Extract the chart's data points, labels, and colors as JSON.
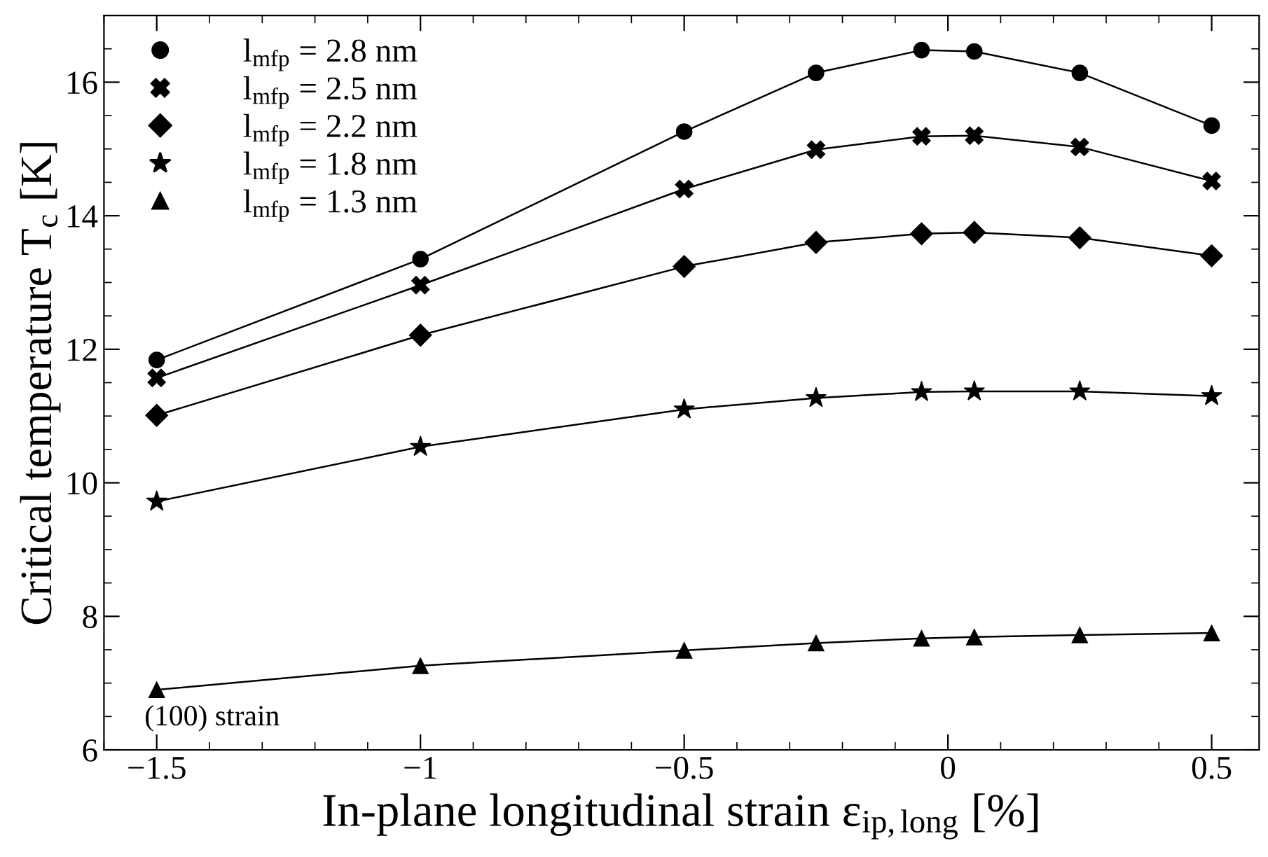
{
  "chart_data": {
    "type": "line",
    "xlabel": "In-plane longitudinal strain ε$_{ip,long}$ [%]",
    "ylabel": "Critical temperature T$_{c}$ [K]",
    "x": [
      -1.5,
      -1,
      -0.5,
      -0.25,
      -0.05,
      0.05,
      0.25,
      0.5
    ],
    "xlim": [
      -1.6,
      0.59
    ],
    "xticks": [
      {
        "value": -1.5,
        "label": "−1.5"
      },
      {
        "value": -1,
        "label": "−1"
      },
      {
        "value": -0.5,
        "label": "−0.5"
      },
      0,
      0.5
    ],
    "ylim": [
      6,
      17
    ],
    "yticks": [
      6,
      8,
      10,
      12,
      14,
      16
    ],
    "series": [
      {
        "name": "l$_{mfp}$ = 2.8 nm",
        "color": "#000000",
        "marker": "circle",
        "values": [
          11.84,
          13.35,
          15.26,
          16.14,
          16.48,
          16.46,
          16.14,
          15.35
        ]
      },
      {
        "name": "l$_{mfp}$ = 2.5 nm",
        "color": "#000000",
        "marker": "cross",
        "values": [
          11.57,
          12.96,
          14.4,
          14.99,
          15.19,
          15.2,
          15.03,
          14.52
        ]
      },
      {
        "name": "l$_{mfp}$ = 2.2 nm",
        "color": "#000000",
        "marker": "diamond",
        "values": [
          11.01,
          12.21,
          13.24,
          13.6,
          13.73,
          13.75,
          13.67,
          13.4
        ]
      },
      {
        "name": "l$_{mfp}$ = 1.8 nm",
        "color": "#000000",
        "marker": "star",
        "values": [
          9.72,
          10.54,
          11.1,
          11.27,
          11.36,
          11.37,
          11.37,
          11.3
        ]
      },
      {
        "name": "l$_{mfp}$ = 1.3 nm",
        "color": "#000000",
        "marker": "triangle",
        "values": [
          6.9,
          7.26,
          7.49,
          7.6,
          7.67,
          7.69,
          7.72,
          7.75
        ]
      }
    ],
    "annotations": [
      "(100) strain"
    ],
    "legend": "top left",
    "grid": false,
    "line_style": "solid"
  }
}
